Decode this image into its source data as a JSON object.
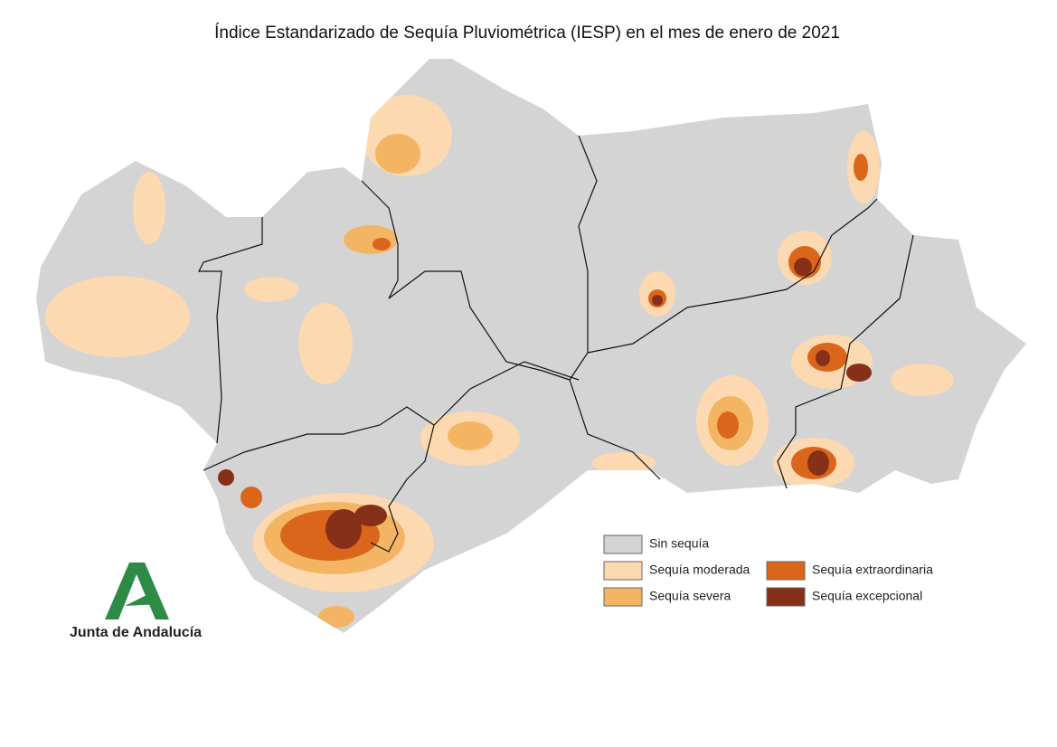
{
  "title": "Índice Estandarizado de Sequía Pluviométrica (IESP) en el mes de enero de 2021",
  "legend": {
    "items": [
      {
        "label": "Sin sequía",
        "color": "#d4d4d4"
      },
      {
        "label": "Sequía moderada",
        "color": "#fcd9b0"
      },
      {
        "label": "Sequía severa",
        "color": "#f3b563"
      },
      {
        "label": "Sequía extraordinaria",
        "color": "#d9661a"
      },
      {
        "label": "Sequía excepcional",
        "color": "#86301a"
      }
    ]
  },
  "logo": {
    "text": "Junta de Andalucía",
    "color": "#2e8b45"
  }
}
